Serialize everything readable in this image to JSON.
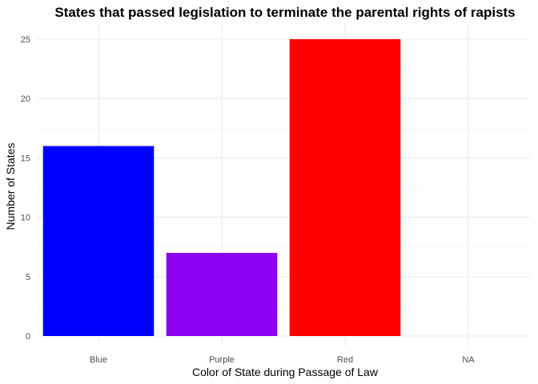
{
  "chart_data": {
    "type": "bar",
    "title": "States that passed legislation to terminate the parental rights of rapists",
    "xlabel": "Color of State during Passage of Law",
    "ylabel": "Number of States",
    "categories": [
      "Blue",
      "Purple",
      "Red",
      "NA"
    ],
    "values": [
      16,
      7,
      25,
      0
    ],
    "bar_colors": [
      "#0000ff",
      "#8b00f0",
      "#ff0000",
      "#cccccc"
    ],
    "ylim": [
      0,
      26.25
    ],
    "yticks": [
      0,
      5,
      10,
      15,
      20,
      25
    ],
    "grid": true,
    "legend": "none"
  }
}
